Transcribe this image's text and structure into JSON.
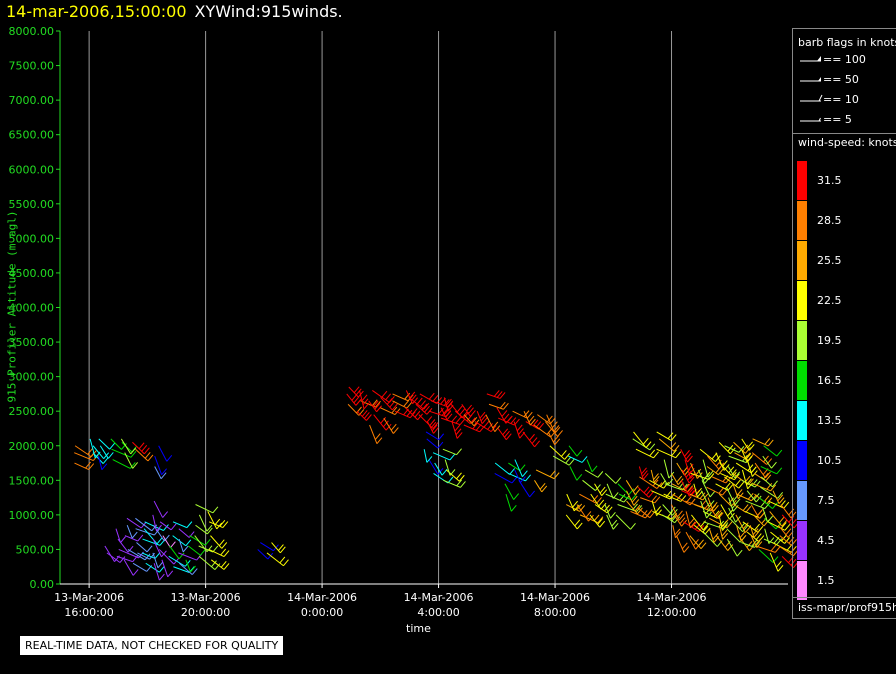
{
  "header": {
    "timestamp": "14-mar-2006,15:00:00",
    "product": "XYWind:915winds."
  },
  "footer": {
    "quality_note": "REAL-TIME DATA, NOT CHECKED FOR QUALITY",
    "source": "iss-mapr/prof915h"
  },
  "barb_legend": {
    "title": "barb flags in knots",
    "items": [
      {
        "label": "== 100",
        "icon": "pennant-barb-icon"
      },
      {
        "label": "== 50",
        "icon": "pennant-barb-icon"
      },
      {
        "label": "== 10",
        "icon": "full-barb-icon"
      },
      {
        "label": "== 5",
        "icon": "half-barb-icon"
      }
    ]
  },
  "speed_legend": {
    "title": "wind-speed: knots",
    "bins": [
      {
        "label": "31.5",
        "color": "#ff0000"
      },
      {
        "label": "28.5",
        "color": "#ff7f00"
      },
      {
        "label": "25.5",
        "color": "#ffaa00"
      },
      {
        "label": "22.5",
        "color": "#ffff00"
      },
      {
        "label": "19.5",
        "color": "#aaff33"
      },
      {
        "label": "16.5",
        "color": "#00dd00"
      },
      {
        "label": "13.5",
        "color": "#00ffff"
      },
      {
        "label": "10.5",
        "color": "#0000ff"
      },
      {
        "label": "7.5",
        "color": "#6699ff"
      },
      {
        "label": "4.5",
        "color": "#9933ff"
      },
      {
        "label": "1.5",
        "color": "#ff88ff"
      }
    ]
  },
  "chart_data": {
    "type": "scatter",
    "title": "XYWind:915winds.",
    "xlabel": "time",
    "ylabel": "915 Profiler Altitude (m agl)",
    "ylim": [
      0,
      8000
    ],
    "y_ticks": [
      "0.00",
      "500.00",
      "1000.00",
      "1500.00",
      "2000.00",
      "2500.00",
      "3000.00",
      "3500.00",
      "4000.00",
      "4500.00",
      "5000.00",
      "5500.00",
      "6000.00",
      "6500.00",
      "7000.00",
      "7500.00",
      "8000.00"
    ],
    "x_ticks": [
      {
        "line1": "13-Mar-2006",
        "line2": "16:00:00",
        "hour": 0
      },
      {
        "line1": "13-Mar-2006",
        "line2": "20:00:00",
        "hour": 4
      },
      {
        "line1": "14-Mar-2006",
        "line2": "0:00:00",
        "hour": 8
      },
      {
        "line1": "14-Mar-2006",
        "line2": "4:00:00",
        "hour": 12
      },
      {
        "line1": "14-Mar-2006",
        "line2": "8:00:00",
        "hour": 16
      },
      {
        "line1": "14-Mar-2006",
        "line2": "12:00:00",
        "hour": 20
      }
    ],
    "xlim_hours": [
      -1,
      24
    ],
    "grid": "vertical",
    "series": [
      {
        "profiles": [
          {
            "t": -0.5,
            "alts": [
              1750,
              1900,
              2000
            ],
            "speed": 29
          },
          {
            "t": 0.1,
            "alts": [
              1900,
              2000,
              2100
            ],
            "speed": 14
          },
          {
            "t": 0.4,
            "alts": [
              1850,
              2000,
              2100
            ],
            "speed": 12
          },
          {
            "t": 0.8,
            "alts": [
              1800,
              1950,
              2100
            ],
            "speed": 16
          },
          {
            "t": 1.2,
            "alts": [
              1900,
              2050,
              2100
            ],
            "speed": 19
          },
          {
            "t": 1.5,
            "alts": [
              1950,
              2050
            ],
            "speed": 30
          },
          {
            "t": 2.3,
            "alts": [
              1700,
              1850,
              2000
            ],
            "speed": 8
          },
          {
            "t": 0.6,
            "alts": [
              450,
              550
            ],
            "speed": 5
          },
          {
            "t": 1.0,
            "alts": [
              400,
              500,
              650,
              800
            ],
            "speed": 4
          },
          {
            "t": 1.3,
            "alts": [
              350,
              500,
              700,
              850,
              950
            ],
            "speed": 6
          },
          {
            "t": 1.6,
            "alts": [
              300,
              450,
              600,
              800,
              950
            ],
            "speed": 8
          },
          {
            "t": 1.9,
            "alts": [
              300,
              450,
              650,
              800,
              900
            ],
            "speed": 13
          },
          {
            "t": 2.2,
            "alts": [
              300,
              450,
              650,
              850,
              1000,
              1200
            ],
            "speed": 5
          },
          {
            "t": 2.5,
            "alts": [
              350,
              500,
              700,
              900
            ],
            "speed": 4
          },
          {
            "t": 2.8,
            "alts": [
              250,
              400,
              550,
              700,
              900
            ],
            "speed": 14
          },
          {
            "t": 3.1,
            "alts": [
              300,
              450,
              650,
              800
            ],
            "speed": 7
          },
          {
            "t": 3.4,
            "alts": [
              350,
              550,
              700
            ],
            "speed": 17
          },
          {
            "t": 3.7,
            "alts": [
              400,
              550,
              700,
              850,
              1000,
              1150
            ],
            "speed": 19
          },
          {
            "t": 4.1,
            "alts": [
              350,
              500,
              700,
              900,
              1050
            ],
            "speed": 22
          },
          {
            "t": 5.8,
            "alts": [
              500,
              600
            ],
            "speed": 10
          },
          {
            "t": 6.2,
            "alts": [
              450,
              600
            ],
            "speed": 22
          },
          {
            "t": 8.9,
            "alts": [
              2600,
              2750,
              2850
            ],
            "speed": 31
          },
          {
            "t": 9.3,
            "alts": [
              2500,
              2650,
              2800
            ],
            "speed": 31
          },
          {
            "t": 9.7,
            "alts": [
              2300,
              2450,
              2650,
              2800
            ],
            "speed": 31
          },
          {
            "t": 10.1,
            "alts": [
              2400,
              2550,
              2700
            ],
            "speed": 31
          },
          {
            "t": 10.5,
            "alts": [
              2500,
              2650,
              2750
            ],
            "speed": 30
          },
          {
            "t": 10.9,
            "alts": [
              2550,
              2700,
              2800
            ],
            "speed": 31
          },
          {
            "t": 11.3,
            "alts": [
              2450,
              2600,
              2750
            ],
            "speed": 31
          },
          {
            "t": 11.7,
            "alts": [
              2350,
              2500,
              2650
            ],
            "speed": 31
          },
          {
            "t": 12.1,
            "alts": [
              2400,
              2550,
              2700
            ],
            "speed": 31
          },
          {
            "t": 12.5,
            "alts": [
              2350,
              2500,
              2600
            ],
            "speed": 31
          },
          {
            "t": 12.9,
            "alts": [
              2300,
              2450,
              2600
            ],
            "speed": 30
          },
          {
            "t": 13.3,
            "alts": [
              2350,
              2500
            ],
            "speed": 31
          },
          {
            "t": 13.7,
            "alts": [
              2450,
              2600,
              2750
            ],
            "speed": 31
          },
          {
            "t": 14.1,
            "alts": [
              2250,
              2400,
              2550
            ],
            "speed": 31
          },
          {
            "t": 14.5,
            "alts": [
              2350,
              2500
            ],
            "speed": 31
          },
          {
            "t": 14.9,
            "alts": [
              2200,
              2350,
              2500
            ],
            "speed": 30
          },
          {
            "t": 15.3,
            "alts": [
              2300,
              2450
            ],
            "speed": 31
          },
          {
            "t": 15.7,
            "alts": [
              2200,
              2350,
              2450
            ],
            "speed": 28
          },
          {
            "t": 11.6,
            "alts": [
              1800,
              1950,
              2100,
              2200
            ],
            "speed": 11
          },
          {
            "t": 11.9,
            "alts": [
              1600,
              1750,
              1900
            ],
            "speed": 16
          },
          {
            "t": 12.2,
            "alts": [
              1500,
              1650,
              1800,
              1950
            ],
            "speed": 20
          },
          {
            "t": 13.9,
            "alts": [
              1600,
              1750
            ],
            "speed": 11
          },
          {
            "t": 14.3,
            "alts": [
              1300,
              1450,
              1600,
              1750
            ],
            "speed": 14
          },
          {
            "t": 14.7,
            "alts": [
              1500,
              1650,
              1800
            ],
            "speed": 12
          },
          {
            "t": 15.3,
            "alts": [
              1500,
              1650
            ],
            "speed": 26
          },
          {
            "t": 15.9,
            "alts": [
              1850,
              2000
            ],
            "speed": 22
          },
          {
            "t": 16.5,
            "alts": [
              1700,
              1850,
              2000
            ],
            "speed": 16
          },
          {
            "t": 17.0,
            "alts": [
              1500,
              1650,
              1800
            ],
            "speed": 18
          },
          {
            "t": 16.4,
            "alts": [
              1000,
              1150,
              1300
            ],
            "speed": 23
          },
          {
            "t": 16.8,
            "alts": [
              1000,
              1150,
              1300
            ],
            "speed": 26
          },
          {
            "t": 17.3,
            "alts": [
              1000,
              1150,
              1300,
              1450
            ],
            "speed": 23
          },
          {
            "t": 17.7,
            "alts": [
              1000,
              1150,
              1300,
              1450,
              1600
            ],
            "speed": 20
          },
          {
            "t": 18.1,
            "alts": [
              1000,
              1150,
              1300,
              1450
            ],
            "speed": 19
          },
          {
            "t": 18.5,
            "alts": [
              1050,
              1200,
              1350,
              1500
            ],
            "speed": 26
          },
          {
            "t": 18.9,
            "alts": [
              1100,
              1250,
              1400,
              1550,
              1700
            ],
            "speed": 29
          },
          {
            "t": 19.3,
            "alts": [
              1050,
              1200,
              1350,
              1500,
              1650
            ],
            "speed": 23
          },
          {
            "t": 19.7,
            "alts": [
              1000,
              1150,
              1300,
              1450,
              1600,
              1800
            ],
            "speed": 20
          },
          {
            "t": 19.5,
            "alts": [
              1950,
              2100,
              2200
            ],
            "speed": 25
          },
          {
            "t": 18.7,
            "alts": [
              1950,
              2100,
              2200
            ],
            "speed": 21
          },
          {
            "t": 20.1,
            "alts": [
              700,
              850,
              1000,
              1150,
              1300,
              1450,
              1600,
              1750
            ],
            "speed": 27
          },
          {
            "t": 20.4,
            "alts": [
              750,
              900,
              1050,
              1200,
              1350,
              1500,
              1650,
              1800,
              1950
            ],
            "speed": 30
          },
          {
            "t": 20.7,
            "alts": [
              700,
              850,
              1000,
              1150,
              1300,
              1450,
              1600,
              1750
            ],
            "speed": 24
          },
          {
            "t": 21.0,
            "alts": [
              750,
              900,
              1050,
              1200,
              1350,
              1500,
              1650,
              1800,
              1950
            ],
            "speed": 21
          },
          {
            "t": 21.3,
            "alts": [
              800,
              950,
              1100,
              1250,
              1400,
              1550,
              1700,
              1850
            ],
            "speed": 28
          },
          {
            "t": 21.6,
            "alts": [
              700,
              850,
              1000,
              1150,
              1300,
              1450,
              1600,
              1750,
              1900,
              2050
            ],
            "speed": 23
          },
          {
            "t": 21.9,
            "alts": [
              650,
              800,
              950,
              1100,
              1250,
              1400,
              1550,
              1700,
              1850,
              2000
            ],
            "speed": 20
          },
          {
            "t": 22.2,
            "alts": [
              700,
              850,
              1000,
              1150,
              1300,
              1450,
              1600,
              1750,
              1900,
              2050
            ],
            "speed": 25
          },
          {
            "t": 22.5,
            "alts": [
              600,
              750,
              900,
              1050,
              1200,
              1350,
              1500,
              1650,
              1800,
              1950,
              2100
            ],
            "speed": 22
          },
          {
            "t": 22.8,
            "alts": [
              550,
              700,
              850,
              1000,
              1150,
              1300,
              1450,
              1600,
              1750,
              1900,
              2100
            ],
            "speed": 27
          },
          {
            "t": 23.1,
            "alts": [
              500,
              650,
              800,
              950,
              1100,
              1250,
              1400,
              1550,
              1700,
              1850,
              2000
            ],
            "speed": 19
          },
          {
            "t": 23.4,
            "alts": [
              450,
              600,
              750,
              900,
              1050,
              1200,
              1350
            ],
            "speed": 24
          },
          {
            "t": 23.7,
            "alts": [
              400,
              550,
              700,
              850,
              1000,
              1150
            ],
            "speed": 30
          }
        ]
      }
    ]
  }
}
